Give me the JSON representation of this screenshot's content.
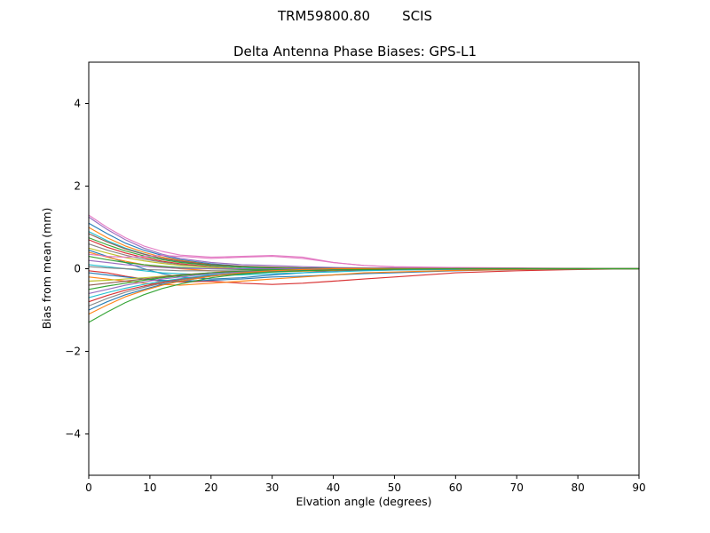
{
  "header": {
    "title_left": "TRM59800.80",
    "title_right": "SCIS"
  },
  "chart_data": {
    "type": "line",
    "title": "Delta Antenna Phase Biases: GPS-L1",
    "suptitle": "TRM59800.80     SCIS",
    "xlabel": "Elvation angle (degrees)",
    "ylabel": "Bias from mean (mm)",
    "xlim": [
      0,
      90
    ],
    "ylim": [
      -5,
      5
    ],
    "grid": false,
    "legend": "none",
    "xticks": [
      0,
      10,
      20,
      30,
      40,
      50,
      60,
      70,
      80,
      90
    ],
    "xtick_labels": [
      "0",
      "10",
      "20",
      "30",
      "40",
      "50",
      "60",
      "70",
      "80",
      "90"
    ],
    "yticks": [
      -4,
      -2,
      0,
      2,
      4
    ],
    "ytick_labels": [
      "−4",
      "−2",
      "0",
      "2",
      "4"
    ],
    "x": [
      0,
      3,
      6,
      9,
      12,
      15,
      20,
      25,
      30,
      35,
      40,
      45,
      50,
      60,
      70,
      80,
      90
    ],
    "series": [
      {
        "color": "#e377c2",
        "values": [
          1.3,
          1.0,
          0.75,
          0.55,
          0.42,
          0.33,
          0.28,
          0.3,
          0.32,
          0.28,
          0.15,
          0.08,
          0.05,
          0.03,
          0.02,
          0.01,
          0.0
        ]
      },
      {
        "color": "#9467bd",
        "values": [
          1.25,
          0.95,
          0.7,
          0.5,
          0.35,
          0.25,
          0.15,
          0.1,
          0.08,
          0.05,
          0.03,
          0.02,
          0.02,
          0.01,
          0.01,
          0.0,
          0.0
        ]
      },
      {
        "color": "#1f77b4",
        "values": [
          1.1,
          0.85,
          0.62,
          0.45,
          0.32,
          0.22,
          0.12,
          0.06,
          0.03,
          0.02,
          0.01,
          0.0,
          0.0,
          0.0,
          0.0,
          0.0,
          0.0
        ]
      },
      {
        "color": "#ff7f0e",
        "values": [
          1.0,
          0.75,
          0.55,
          0.4,
          0.28,
          0.2,
          0.1,
          0.05,
          0.02,
          0.0,
          -0.02,
          -0.03,
          -0.02,
          0.0,
          0.0,
          0.0,
          0.0
        ]
      },
      {
        "color": "#17becf",
        "values": [
          0.9,
          0.68,
          0.5,
          0.36,
          0.25,
          0.17,
          0.08,
          0.03,
          0.0,
          -0.02,
          -0.03,
          -0.02,
          -0.01,
          0.0,
          0.0,
          0.0,
          0.0
        ]
      },
      {
        "color": "#8c564b",
        "values": [
          0.85,
          0.65,
          0.48,
          0.35,
          0.25,
          0.18,
          0.1,
          0.06,
          0.04,
          0.02,
          0.01,
          0.01,
          0.0,
          0.0,
          0.0,
          0.0,
          0.0
        ]
      },
      {
        "color": "#2ca02c",
        "values": [
          0.75,
          0.58,
          0.43,
          0.31,
          0.22,
          0.15,
          0.08,
          0.04,
          0.02,
          0.01,
          0.0,
          0.0,
          0.0,
          0.0,
          0.0,
          0.0,
          0.0
        ]
      },
      {
        "color": "#d62728",
        "values": [
          0.7,
          0.52,
          0.38,
          0.27,
          0.18,
          0.12,
          0.05,
          0.0,
          -0.03,
          -0.05,
          -0.05,
          -0.04,
          -0.03,
          -0.01,
          0.0,
          0.0,
          0.0
        ]
      },
      {
        "color": "#7f7f7f",
        "values": [
          0.6,
          0.45,
          0.33,
          0.23,
          0.16,
          0.1,
          0.04,
          0.0,
          -0.02,
          -0.03,
          -0.03,
          -0.02,
          -0.01,
          0.0,
          0.0,
          0.0,
          0.0
        ]
      },
      {
        "color": "#bcbd22",
        "values": [
          0.5,
          0.38,
          0.27,
          0.19,
          0.13,
          0.08,
          0.03,
          0.0,
          -0.02,
          -0.02,
          -0.01,
          0.0,
          0.0,
          0.0,
          0.0,
          0.0,
          0.0
        ]
      },
      {
        "color": "#1f77b4",
        "values": [
          0.45,
          0.3,
          0.15,
          0.0,
          -0.12,
          -0.2,
          -0.25,
          -0.22,
          -0.15,
          -0.1,
          -0.05,
          -0.03,
          -0.02,
          -0.01,
          0.0,
          0.0,
          0.0
        ]
      },
      {
        "color": "#ff7f0e",
        "values": [
          0.4,
          0.28,
          0.18,
          0.1,
          0.04,
          0.0,
          -0.05,
          -0.08,
          -0.08,
          -0.06,
          -0.04,
          -0.02,
          -0.01,
          0.0,
          0.0,
          0.0,
          0.0
        ]
      },
      {
        "color": "#e377c2",
        "values": [
          0.35,
          0.3,
          0.28,
          0.3,
          0.32,
          0.3,
          0.25,
          0.28,
          0.3,
          0.25,
          0.15,
          0.08,
          0.04,
          0.02,
          0.01,
          0.0,
          0.0
        ]
      },
      {
        "color": "#2ca02c",
        "values": [
          0.3,
          0.22,
          0.15,
          0.1,
          0.06,
          0.03,
          0.0,
          -0.02,
          -0.02,
          -0.01,
          0.0,
          0.0,
          0.0,
          0.0,
          0.0,
          0.0,
          0.0
        ]
      },
      {
        "color": "#9467bd",
        "values": [
          0.2,
          0.15,
          0.1,
          0.06,
          0.03,
          0.01,
          0.0,
          0.0,
          0.0,
          0.0,
          0.0,
          0.0,
          0.0,
          0.0,
          0.0,
          0.0,
          0.0
        ]
      },
      {
        "color": "#17becf",
        "values": [
          0.1,
          0.05,
          0.0,
          -0.05,
          -0.1,
          -0.12,
          -0.15,
          -0.15,
          -0.12,
          -0.1,
          -0.08,
          -0.05,
          -0.03,
          -0.02,
          -0.01,
          0.0,
          0.0
        ]
      },
      {
        "color": "#7f7f7f",
        "values": [
          0.05,
          0.02,
          0.0,
          -0.02,
          -0.03,
          -0.05,
          -0.05,
          -0.05,
          -0.04,
          -0.03,
          -0.02,
          -0.01,
          0.0,
          0.0,
          0.0,
          0.0,
          0.0
        ]
      },
      {
        "color": "#d62728",
        "values": [
          -0.05,
          -0.1,
          -0.18,
          -0.25,
          -0.3,
          -0.32,
          -0.3,
          -0.35,
          -0.38,
          -0.35,
          -0.3,
          -0.25,
          -0.2,
          -0.1,
          -0.05,
          -0.02,
          0.0
        ]
      },
      {
        "color": "#1f77b4",
        "values": [
          -0.1,
          -0.15,
          -0.2,
          -0.25,
          -0.28,
          -0.3,
          -0.28,
          -0.25,
          -0.2,
          -0.18,
          -0.15,
          -0.12,
          -0.1,
          -0.05,
          -0.02,
          -0.01,
          0.0
        ]
      },
      {
        "color": "#ff7f0e",
        "values": [
          -0.2,
          -0.25,
          -0.3,
          -0.35,
          -0.38,
          -0.4,
          -0.35,
          -0.3,
          -0.25,
          -0.2,
          -0.15,
          -0.1,
          -0.08,
          -0.04,
          -0.02,
          -0.01,
          0.0
        ]
      },
      {
        "color": "#bcbd22",
        "values": [
          -0.3,
          -0.28,
          -0.25,
          -0.22,
          -0.18,
          -0.15,
          -0.1,
          -0.08,
          -0.05,
          -0.03,
          -0.02,
          -0.01,
          0.0,
          0.0,
          0.0,
          0.0,
          0.0
        ]
      },
      {
        "color": "#8c564b",
        "values": [
          -0.4,
          -0.35,
          -0.3,
          -0.25,
          -0.2,
          -0.15,
          -0.1,
          -0.06,
          -0.04,
          -0.02,
          -0.01,
          0.0,
          0.0,
          0.0,
          0.0,
          0.0,
          0.0
        ]
      },
      {
        "color": "#2ca02c",
        "values": [
          -0.5,
          -0.42,
          -0.35,
          -0.28,
          -0.22,
          -0.17,
          -0.1,
          -0.06,
          -0.03,
          -0.02,
          -0.01,
          0.0,
          0.0,
          0.0,
          0.0,
          0.0,
          0.0
        ]
      },
      {
        "color": "#9467bd",
        "values": [
          -0.6,
          -0.5,
          -0.4,
          -0.32,
          -0.25,
          -0.2,
          -0.12,
          -0.08,
          -0.05,
          -0.03,
          -0.02,
          -0.01,
          0.0,
          0.0,
          0.0,
          0.0,
          0.0
        ]
      },
      {
        "color": "#17becf",
        "values": [
          -0.7,
          -0.58,
          -0.47,
          -0.38,
          -0.3,
          -0.24,
          -0.15,
          -0.1,
          -0.06,
          -0.04,
          -0.02,
          -0.01,
          -0.01,
          0.0,
          0.0,
          0.0,
          0.0
        ]
      },
      {
        "color": "#d62728",
        "values": [
          -0.8,
          -0.65,
          -0.52,
          -0.42,
          -0.33,
          -0.26,
          -0.17,
          -0.11,
          -0.07,
          -0.04,
          -0.03,
          -0.02,
          -0.01,
          0.0,
          0.0,
          0.0,
          0.0
        ]
      },
      {
        "color": "#7f7f7f",
        "values": [
          -0.9,
          -0.72,
          -0.57,
          -0.45,
          -0.35,
          -0.27,
          -0.17,
          -0.1,
          -0.06,
          -0.04,
          -0.02,
          -0.01,
          0.0,
          0.0,
          0.0,
          0.0,
          0.0
        ]
      },
      {
        "color": "#1f77b4",
        "values": [
          -1.0,
          -0.8,
          -0.63,
          -0.5,
          -0.38,
          -0.3,
          -0.18,
          -0.11,
          -0.07,
          -0.04,
          -0.02,
          -0.01,
          0.0,
          0.0,
          0.0,
          0.0,
          0.0
        ]
      },
      {
        "color": "#ff7f0e",
        "values": [
          -1.1,
          -0.88,
          -0.68,
          -0.53,
          -0.4,
          -0.3,
          -0.18,
          -0.1,
          -0.05,
          -0.02,
          0.0,
          0.0,
          0.0,
          0.0,
          0.0,
          0.0,
          0.0
        ]
      },
      {
        "color": "#2ca02c",
        "values": [
          -1.3,
          -1.05,
          -0.82,
          -0.63,
          -0.48,
          -0.37,
          -0.22,
          -0.13,
          -0.08,
          -0.05,
          -0.03,
          -0.02,
          -0.01,
          0.0,
          0.0,
          0.0,
          0.0
        ]
      }
    ]
  }
}
